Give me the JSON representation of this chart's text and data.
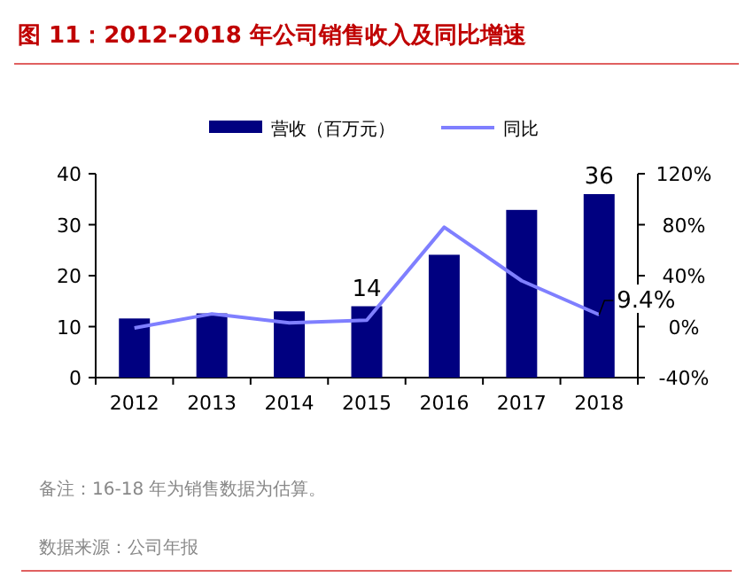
{
  "chart_data": {
    "type": "bar",
    "title": "图 11：2012-2018 年公司销售收入及同比增速",
    "categories": [
      "2012",
      "2013",
      "2014",
      "2015",
      "2016",
      "2017",
      "2018"
    ],
    "series": [
      {
        "name": "营收（百万元）",
        "color": "#000080",
        "values": [
          11.6,
          12.6,
          13.0,
          14,
          24.1,
          32.9,
          36
        ],
        "value_labels": [
          null,
          null,
          null,
          "14",
          null,
          null,
          "36"
        ]
      },
      {
        "name": "同比",
        "type": "line",
        "axis": "y2",
        "color": "#7f7fff",
        "values": [
          -1,
          10,
          3,
          5,
          78,
          36,
          9.4
        ],
        "value_labels": [
          null,
          null,
          null,
          null,
          null,
          null,
          "9.4%"
        ]
      }
    ],
    "ylim": [
      0,
      40
    ],
    "yticks": [
      0,
      10,
      20,
      30,
      40
    ],
    "y2lim": [
      -40,
      120
    ],
    "y2ticks": [
      {
        "value": -40,
        "label": "-40%"
      },
      {
        "value": 0,
        "label": "0%"
      },
      {
        "value": 40,
        "label": "40%"
      },
      {
        "value": 80,
        "label": "80%"
      },
      {
        "value": 120,
        "label": "120%"
      }
    ],
    "legend": "top",
    "annotations": [
      "备注：16-18 年为销售数据为估算。",
      "数据来源：公司年报"
    ]
  }
}
